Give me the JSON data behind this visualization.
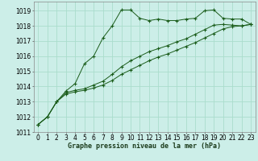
{
  "bg_color": "#cceee8",
  "grid_color": "#aaddcc",
  "line_color": "#1a5c1a",
  "marker": "+",
  "xlabel": "Graphe pression niveau de la mer (hPa)",
  "xlabel_fontsize": 6,
  "tick_fontsize": 5.5,
  "xlim": [
    -0.5,
    23.5
  ],
  "ylim": [
    1011,
    1019.6
  ],
  "yticks": [
    1011,
    1012,
    1013,
    1014,
    1015,
    1016,
    1017,
    1018,
    1019
  ],
  "xticks": [
    0,
    1,
    2,
    3,
    4,
    5,
    6,
    7,
    8,
    9,
    10,
    11,
    12,
    13,
    14,
    15,
    16,
    17,
    18,
    19,
    20,
    21,
    22,
    23
  ],
  "series1_x": [
    0,
    1,
    2,
    3,
    4,
    5,
    6,
    7,
    8,
    9,
    10,
    11,
    12,
    13,
    14,
    15,
    16,
    17,
    18,
    19,
    20,
    21,
    22,
    23
  ],
  "series1_y": [
    1011.5,
    1012.0,
    1013.0,
    1013.7,
    1014.2,
    1015.5,
    1016.0,
    1017.2,
    1018.0,
    1019.05,
    1019.05,
    1018.5,
    1018.35,
    1018.45,
    1018.35,
    1018.35,
    1018.45,
    1018.5,
    1019.0,
    1019.05,
    1018.5,
    1018.45,
    1018.45,
    1018.1
  ],
  "series2_x": [
    0,
    1,
    2,
    3,
    4,
    5,
    6,
    7,
    8,
    9,
    10,
    11,
    12,
    13,
    14,
    15,
    16,
    17,
    18,
    19,
    20,
    21,
    22,
    23
  ],
  "series2_y": [
    1011.5,
    1012.0,
    1013.0,
    1013.6,
    1013.75,
    1013.85,
    1014.1,
    1014.35,
    1014.8,
    1015.3,
    1015.7,
    1016.0,
    1016.3,
    1016.5,
    1016.7,
    1016.95,
    1017.15,
    1017.45,
    1017.75,
    1018.05,
    1018.1,
    1018.05,
    1018.0,
    1018.1
  ],
  "series3_x": [
    0,
    1,
    2,
    3,
    4,
    5,
    6,
    7,
    8,
    9,
    10,
    11,
    12,
    13,
    14,
    15,
    16,
    17,
    18,
    19,
    20,
    21,
    22,
    23
  ],
  "series3_y": [
    1011.5,
    1012.0,
    1013.0,
    1013.5,
    1013.65,
    1013.75,
    1013.9,
    1014.1,
    1014.4,
    1014.8,
    1015.1,
    1015.4,
    1015.7,
    1015.95,
    1016.15,
    1016.4,
    1016.65,
    1016.9,
    1017.2,
    1017.5,
    1017.8,
    1017.95,
    1018.0,
    1018.1
  ]
}
